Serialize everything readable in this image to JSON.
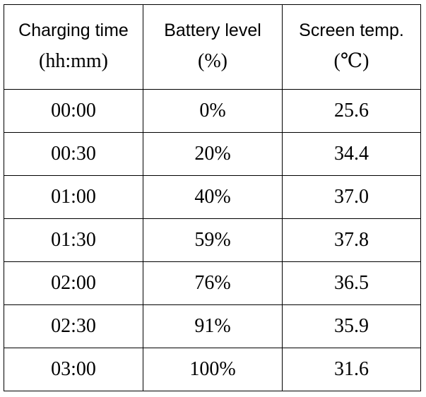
{
  "table": {
    "columns": [
      {
        "label": "Charging time",
        "unit": "(hh:mm)"
      },
      {
        "label": "Battery level",
        "unit": "(%)"
      },
      {
        "label": "Screen temp.",
        "unit": "(℃)"
      }
    ],
    "rows": [
      {
        "time": "00:00",
        "battery": "0%",
        "temp": "25.6"
      },
      {
        "time": "00:30",
        "battery": "20%",
        "temp": "34.4"
      },
      {
        "time": "01:00",
        "battery": "40%",
        "temp": "37.0"
      },
      {
        "time": "01:30",
        "battery": "59%",
        "temp": "37.8"
      },
      {
        "time": "02:00",
        "battery": "76%",
        "temp": "36.5"
      },
      {
        "time": "02:30",
        "battery": "91%",
        "temp": "35.9"
      },
      {
        "time": "03:00",
        "battery": "100%",
        "temp": "31.6"
      }
    ]
  }
}
